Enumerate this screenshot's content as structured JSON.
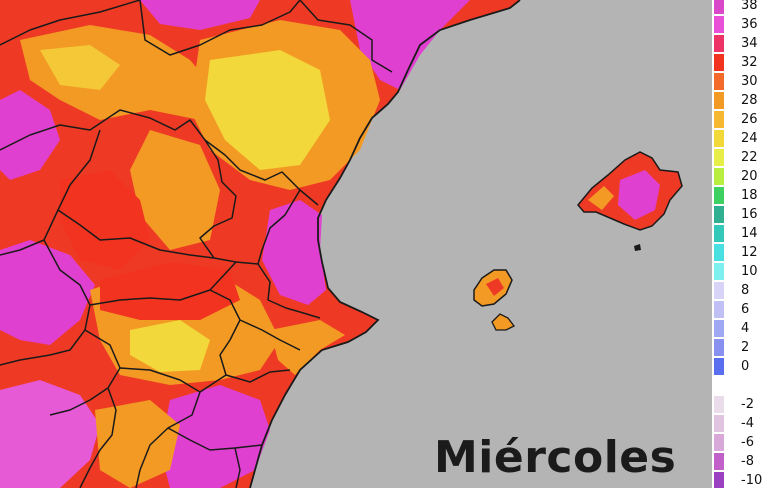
{
  "day_label": "Miércoles",
  "colors": {
    "sea": "#b4b4b4",
    "heat_magenta": "#e040d0",
    "heat_red": "#ee3a24",
    "heat_orange": "#f39a24",
    "heat_yellow": "#f2d83a",
    "border": "#1a1a1a"
  },
  "legend": [
    {
      "label": "38",
      "color": "#d848c8"
    },
    {
      "label": "36",
      "color": "#e850d8"
    },
    {
      "label": "34",
      "color": "#ee3366"
    },
    {
      "label": "32",
      "color": "#f23320"
    },
    {
      "label": "30",
      "color": "#f46a2a"
    },
    {
      "label": "28",
      "color": "#f39a24"
    },
    {
      "label": "26",
      "color": "#f5b830"
    },
    {
      "label": "24",
      "color": "#f3d83a"
    },
    {
      "label": "22",
      "color": "#e8ee48"
    },
    {
      "label": "20",
      "color": "#b8ee40"
    },
    {
      "label": "18",
      "color": "#3ed060"
    },
    {
      "label": "16",
      "color": "#30b090"
    },
    {
      "label": "14",
      "color": "#34c8b8"
    },
    {
      "label": "12",
      "color": "#48e0e0"
    },
    {
      "label": "10",
      "color": "#7ef0f0"
    },
    {
      "label": "8",
      "color": "#d8d4f8"
    },
    {
      "label": "6",
      "color": "#c0c0f6"
    },
    {
      "label": "4",
      "color": "#a0a8f4"
    },
    {
      "label": "2",
      "color": "#8890f0"
    },
    {
      "label": "0",
      "color": "#5a6ef0"
    },
    {
      "label": "",
      "color": "#ffffff"
    },
    {
      "label": "-2",
      "color": "#eadcea"
    },
    {
      "label": "-4",
      "color": "#e0c4e0"
    },
    {
      "label": "-6",
      "color": "#d8a8d8"
    },
    {
      "label": "-8",
      "color": "#c060c8"
    },
    {
      "label": "-10",
      "color": "#9a40c0"
    }
  ]
}
